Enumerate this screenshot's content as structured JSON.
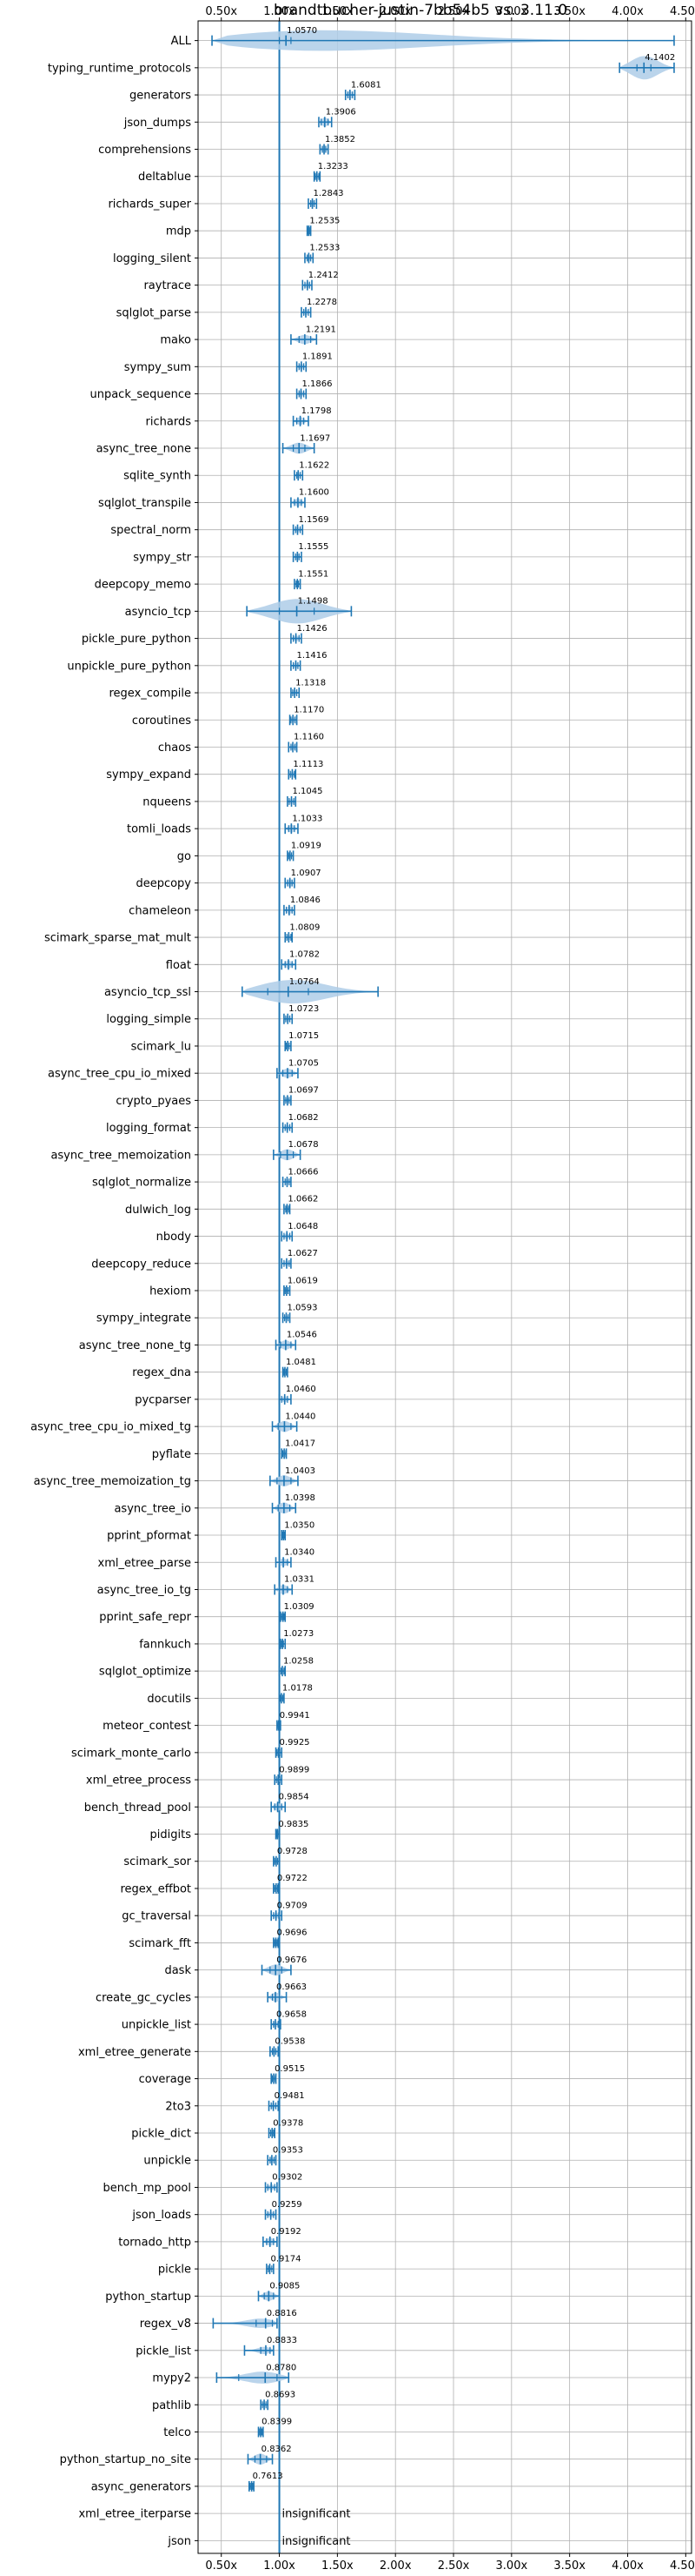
{
  "chart_data": {
    "type": "violin",
    "title": "brandtbucher-justin-7bb54b5 vs. 3.11.0",
    "xlim": [
      0.3,
      4.55
    ],
    "xticks": [
      "0.50x",
      "1.00x",
      "1.50x",
      "2.00x",
      "2.50x",
      "3.00x",
      "3.50x",
      "4.00x",
      "4.50x"
    ],
    "xtick_values": [
      0.5,
      1.0,
      1.5,
      2.0,
      2.5,
      3.0,
      3.5,
      4.0,
      4.5
    ],
    "reference_line": 1.0,
    "grid": true,
    "colors": {
      "accent": "#1f77b4",
      "violin": "#aecde8",
      "grid": "#b0b0b0"
    },
    "rows": [
      {
        "name": "ALL",
        "value": 1.057,
        "label": "1.0570",
        "min": 0.42,
        "max": 4.4,
        "width": 0.22,
        "q1": 1.0,
        "q3": 1.1
      },
      {
        "name": "typing_runtime_protocols",
        "value": 4.1402,
        "label": "4.1402",
        "min": 3.93,
        "max": 4.4,
        "width": 0.15,
        "q1": 4.08,
        "q3": 4.2
      },
      {
        "name": "generators",
        "value": 1.6081,
        "label": "1.6081",
        "min": 1.57,
        "max": 1.65,
        "width": 0.05,
        "q1": 1.59,
        "q3": 1.63
      },
      {
        "name": "json_dumps",
        "value": 1.3906,
        "label": "1.3906",
        "min": 1.34,
        "max": 1.45,
        "width": 0.06,
        "q1": 1.36,
        "q3": 1.42
      },
      {
        "name": "comprehensions",
        "value": 1.3852,
        "label": "1.3852",
        "min": 1.35,
        "max": 1.42,
        "width": 0.05,
        "q1": 1.37,
        "q3": 1.4
      },
      {
        "name": "deltablue",
        "value": 1.3233,
        "label": "1.3233",
        "min": 1.3,
        "max": 1.35,
        "width": 0.04,
        "q1": 1.31,
        "q3": 1.34
      },
      {
        "name": "richards_super",
        "value": 1.2843,
        "label": "1.2843",
        "min": 1.25,
        "max": 1.32,
        "width": 0.04,
        "q1": 1.27,
        "q3": 1.3
      },
      {
        "name": "mdp",
        "value": 1.2535,
        "label": "1.2535",
        "min": 1.24,
        "max": 1.27,
        "width": 0.03,
        "q1": 1.245,
        "q3": 1.26
      },
      {
        "name": "logging_silent",
        "value": 1.2533,
        "label": "1.2533",
        "min": 1.22,
        "max": 1.29,
        "width": 0.04,
        "q1": 1.24,
        "q3": 1.27
      },
      {
        "name": "raytrace",
        "value": 1.2412,
        "label": "1.2412",
        "min": 1.2,
        "max": 1.28,
        "width": 0.04,
        "q1": 1.22,
        "q3": 1.26
      },
      {
        "name": "sqlglot_parse",
        "value": 1.2278,
        "label": "1.2278",
        "min": 1.19,
        "max": 1.27,
        "width": 0.04,
        "q1": 1.21,
        "q3": 1.25
      },
      {
        "name": "mako",
        "value": 1.2191,
        "label": "1.2191",
        "min": 1.1,
        "max": 1.32,
        "width": 0.06,
        "q1": 1.17,
        "q3": 1.27
      },
      {
        "name": "sympy_sum",
        "value": 1.1891,
        "label": "1.1891",
        "min": 1.15,
        "max": 1.23,
        "width": 0.04,
        "q1": 1.17,
        "q3": 1.21
      },
      {
        "name": "unpack_sequence",
        "value": 1.1866,
        "label": "1.1866",
        "min": 1.15,
        "max": 1.23,
        "width": 0.04,
        "q1": 1.17,
        "q3": 1.21
      },
      {
        "name": "richards",
        "value": 1.1798,
        "label": "1.1798",
        "min": 1.12,
        "max": 1.25,
        "width": 0.05,
        "q1": 1.15,
        "q3": 1.21
      },
      {
        "name": "async_tree_none",
        "value": 1.1697,
        "label": "1.1697",
        "min": 1.03,
        "max": 1.3,
        "width": 0.07,
        "q1": 1.12,
        "q3": 1.22
      },
      {
        "name": "sqlite_synth",
        "value": 1.1622,
        "label": "1.1622",
        "min": 1.13,
        "max": 1.2,
        "width": 0.04,
        "q1": 1.15,
        "q3": 1.18
      },
      {
        "name": "sqlglot_transpile",
        "value": 1.16,
        "label": "1.1600",
        "min": 1.1,
        "max": 1.22,
        "width": 0.05,
        "q1": 1.13,
        "q3": 1.19
      },
      {
        "name": "spectral_norm",
        "value": 1.1569,
        "label": "1.1569",
        "min": 1.12,
        "max": 1.2,
        "width": 0.04,
        "q1": 1.14,
        "q3": 1.18
      },
      {
        "name": "sympy_str",
        "value": 1.1555,
        "label": "1.1555",
        "min": 1.12,
        "max": 1.19,
        "width": 0.04,
        "q1": 1.14,
        "q3": 1.17
      },
      {
        "name": "deepcopy_memo",
        "value": 1.1551,
        "label": "1.1551",
        "min": 1.13,
        "max": 1.18,
        "width": 0.04,
        "q1": 1.145,
        "q3": 1.165
      },
      {
        "name": "asyncio_tcp",
        "value": 1.1498,
        "label": "1.1498",
        "min": 0.72,
        "max": 1.62,
        "width": 0.24,
        "q1": 1.0,
        "q3": 1.3
      },
      {
        "name": "pickle_pure_python",
        "value": 1.1426,
        "label": "1.1426",
        "min": 1.1,
        "max": 1.19,
        "width": 0.04,
        "q1": 1.12,
        "q3": 1.17
      },
      {
        "name": "unpickle_pure_python",
        "value": 1.1416,
        "label": "1.1416",
        "min": 1.1,
        "max": 1.18,
        "width": 0.04,
        "q1": 1.12,
        "q3": 1.16
      },
      {
        "name": "regex_compile",
        "value": 1.1318,
        "label": "1.1318",
        "min": 1.1,
        "max": 1.17,
        "width": 0.04,
        "q1": 1.115,
        "q3": 1.15
      },
      {
        "name": "coroutines",
        "value": 1.117,
        "label": "1.1170",
        "min": 1.09,
        "max": 1.15,
        "width": 0.04,
        "q1": 1.1,
        "q3": 1.135
      },
      {
        "name": "chaos",
        "value": 1.116,
        "label": "1.1160",
        "min": 1.08,
        "max": 1.15,
        "width": 0.04,
        "q1": 1.1,
        "q3": 1.135
      },
      {
        "name": "sympy_expand",
        "value": 1.1113,
        "label": "1.1113",
        "min": 1.08,
        "max": 1.14,
        "width": 0.04,
        "q1": 1.095,
        "q3": 1.13
      },
      {
        "name": "nqueens",
        "value": 1.1045,
        "label": "1.1045",
        "min": 1.07,
        "max": 1.14,
        "width": 0.04,
        "q1": 1.085,
        "q3": 1.125
      },
      {
        "name": "tomli_loads",
        "value": 1.1033,
        "label": "1.1033",
        "min": 1.05,
        "max": 1.16,
        "width": 0.05,
        "q1": 1.08,
        "q3": 1.13
      },
      {
        "name": "go",
        "value": 1.0919,
        "label": "1.0919",
        "min": 1.07,
        "max": 1.12,
        "width": 0.03,
        "q1": 1.08,
        "q3": 1.105
      },
      {
        "name": "deepcopy",
        "value": 1.0907,
        "label": "1.0907",
        "min": 1.05,
        "max": 1.13,
        "width": 0.05,
        "q1": 1.07,
        "q3": 1.11
      },
      {
        "name": "chameleon",
        "value": 1.0846,
        "label": "1.0846",
        "min": 1.04,
        "max": 1.13,
        "width": 0.05,
        "q1": 1.06,
        "q3": 1.11
      },
      {
        "name": "scimark_sparse_mat_mult",
        "value": 1.0809,
        "label": "1.0809",
        "min": 1.05,
        "max": 1.11,
        "width": 0.04,
        "q1": 1.065,
        "q3": 1.1
      },
      {
        "name": "float",
        "value": 1.0782,
        "label": "1.0782",
        "min": 1.02,
        "max": 1.14,
        "width": 0.05,
        "q1": 1.05,
        "q3": 1.11
      },
      {
        "name": "asyncio_tcp_ssl",
        "value": 1.0764,
        "label": "1.0764",
        "min": 0.68,
        "max": 1.85,
        "width": 0.25,
        "q1": 0.9,
        "q3": 1.25
      },
      {
        "name": "logging_simple",
        "value": 1.0723,
        "label": "1.0723",
        "min": 1.04,
        "max": 1.11,
        "width": 0.04,
        "q1": 1.055,
        "q3": 1.09
      },
      {
        "name": "scimark_lu",
        "value": 1.0715,
        "label": "1.0715",
        "min": 1.05,
        "max": 1.1,
        "width": 0.03,
        "q1": 1.06,
        "q3": 1.085
      },
      {
        "name": "async_tree_cpu_io_mixed",
        "value": 1.0705,
        "label": "1.0705",
        "min": 0.98,
        "max": 1.16,
        "width": 0.06,
        "q1": 1.03,
        "q3": 1.11
      },
      {
        "name": "crypto_pyaes",
        "value": 1.0697,
        "label": "1.0697",
        "min": 1.04,
        "max": 1.1,
        "width": 0.03,
        "q1": 1.055,
        "q3": 1.085
      },
      {
        "name": "logging_format",
        "value": 1.0682,
        "label": "1.0682",
        "min": 1.03,
        "max": 1.11,
        "width": 0.04,
        "q1": 1.05,
        "q3": 1.09
      },
      {
        "name": "async_tree_memoization",
        "value": 1.0678,
        "label": "1.0678",
        "min": 0.95,
        "max": 1.18,
        "width": 0.07,
        "q1": 1.01,
        "q3": 1.12
      },
      {
        "name": "sqlglot_normalize",
        "value": 1.0666,
        "label": "1.0666",
        "min": 1.03,
        "max": 1.1,
        "width": 0.04,
        "q1": 1.05,
        "q3": 1.085
      },
      {
        "name": "dulwich_log",
        "value": 1.0662,
        "label": "1.0662",
        "min": 1.04,
        "max": 1.09,
        "width": 0.03,
        "q1": 1.055,
        "q3": 1.08
      },
      {
        "name": "nbody",
        "value": 1.0648,
        "label": "1.0648",
        "min": 1.02,
        "max": 1.11,
        "width": 0.04,
        "q1": 1.04,
        "q3": 1.09
      },
      {
        "name": "deepcopy_reduce",
        "value": 1.0627,
        "label": "1.0627",
        "min": 1.02,
        "max": 1.1,
        "width": 0.04,
        "q1": 1.04,
        "q3": 1.085
      },
      {
        "name": "hexiom",
        "value": 1.0619,
        "label": "1.0619",
        "min": 1.04,
        "max": 1.09,
        "width": 0.03,
        "q1": 1.05,
        "q3": 1.075
      },
      {
        "name": "sympy_integrate",
        "value": 1.0593,
        "label": "1.0593",
        "min": 1.03,
        "max": 1.09,
        "width": 0.03,
        "q1": 1.045,
        "q3": 1.075
      },
      {
        "name": "async_tree_none_tg",
        "value": 1.0546,
        "label": "1.0546",
        "min": 0.97,
        "max": 1.14,
        "width": 0.06,
        "q1": 1.01,
        "q3": 1.1
      },
      {
        "name": "regex_dna",
        "value": 1.0481,
        "label": "1.0481",
        "min": 1.03,
        "max": 1.07,
        "width": 0.03,
        "q1": 1.04,
        "q3": 1.06
      },
      {
        "name": "pycparser",
        "value": 1.046,
        "label": "1.0460",
        "min": 1.0,
        "max": 1.1,
        "width": 0.04,
        "q1": 1.02,
        "q3": 1.07
      },
      {
        "name": "async_tree_cpu_io_mixed_tg",
        "value": 1.044,
        "label": "1.0440",
        "min": 0.94,
        "max": 1.15,
        "width": 0.07,
        "q1": 0.99,
        "q3": 1.1
      },
      {
        "name": "pyflate",
        "value": 1.0417,
        "label": "1.0417",
        "min": 1.02,
        "max": 1.06,
        "width": 0.03,
        "q1": 1.03,
        "q3": 1.055
      },
      {
        "name": "async_tree_memoization_tg",
        "value": 1.0403,
        "label": "1.0403",
        "min": 0.92,
        "max": 1.16,
        "width": 0.07,
        "q1": 0.98,
        "q3": 1.1
      },
      {
        "name": "async_tree_io",
        "value": 1.0398,
        "label": "1.0398",
        "min": 0.94,
        "max": 1.14,
        "width": 0.07,
        "q1": 0.99,
        "q3": 1.09
      },
      {
        "name": "pprint_pformat",
        "value": 1.035,
        "label": "1.0350",
        "min": 1.02,
        "max": 1.05,
        "width": 0.02,
        "q1": 1.03,
        "q3": 1.045
      },
      {
        "name": "xml_etree_parse",
        "value": 1.034,
        "label": "1.0340",
        "min": 0.97,
        "max": 1.1,
        "width": 0.05,
        "q1": 1.0,
        "q3": 1.07
      },
      {
        "name": "async_tree_io_tg",
        "value": 1.0331,
        "label": "1.0331",
        "min": 0.96,
        "max": 1.11,
        "width": 0.06,
        "q1": 1.0,
        "q3": 1.07
      },
      {
        "name": "pprint_safe_repr",
        "value": 1.0309,
        "label": "1.0309",
        "min": 1.01,
        "max": 1.05,
        "width": 0.02,
        "q1": 1.02,
        "q3": 1.04
      },
      {
        "name": "fannkuch",
        "value": 1.0273,
        "label": "1.0273",
        "min": 1.01,
        "max": 1.05,
        "width": 0.02,
        "q1": 1.02,
        "q3": 1.035
      },
      {
        "name": "sqlglot_optimize",
        "value": 1.0258,
        "label": "1.0258",
        "min": 1.0,
        "max": 1.05,
        "width": 0.03,
        "q1": 1.015,
        "q3": 1.04
      },
      {
        "name": "docutils",
        "value": 1.0178,
        "label": "1.0178",
        "min": 1.0,
        "max": 1.04,
        "width": 0.03,
        "q1": 1.01,
        "q3": 1.03
      },
      {
        "name": "meteor_contest",
        "value": 0.9941,
        "label": "0.9941",
        "min": 0.98,
        "max": 1.01,
        "width": 0.02,
        "q1": 0.99,
        "q3": 1.0
      },
      {
        "name": "scimark_monte_carlo",
        "value": 0.9925,
        "label": "0.9925",
        "min": 0.97,
        "max": 1.02,
        "width": 0.03,
        "q1": 0.98,
        "q3": 1.005
      },
      {
        "name": "xml_etree_process",
        "value": 0.9899,
        "label": "0.9899",
        "min": 0.96,
        "max": 1.02,
        "width": 0.03,
        "q1": 0.975,
        "q3": 1.005
      },
      {
        "name": "bench_thread_pool",
        "value": 0.9854,
        "label": "0.9854",
        "min": 0.93,
        "max": 1.05,
        "width": 0.05,
        "q1": 0.96,
        "q3": 1.02
      },
      {
        "name": "pidigits",
        "value": 0.9835,
        "label": "0.9835",
        "min": 0.97,
        "max": 1.0,
        "width": 0.02,
        "q1": 0.975,
        "q3": 0.995
      },
      {
        "name": "scimark_sor",
        "value": 0.9728,
        "label": "0.9728",
        "min": 0.95,
        "max": 1.0,
        "width": 0.03,
        "q1": 0.96,
        "q3": 0.985
      },
      {
        "name": "regex_effbot",
        "value": 0.9722,
        "label": "0.9722",
        "min": 0.95,
        "max": 0.99,
        "width": 0.03,
        "q1": 0.96,
        "q3": 0.985
      },
      {
        "name": "gc_traversal",
        "value": 0.9709,
        "label": "0.9709",
        "min": 0.93,
        "max": 1.02,
        "width": 0.04,
        "q1": 0.95,
        "q3": 0.995
      },
      {
        "name": "scimark_fft",
        "value": 0.9696,
        "label": "0.9696",
        "min": 0.95,
        "max": 0.99,
        "width": 0.02,
        "q1": 0.96,
        "q3": 0.98
      },
      {
        "name": "dask",
        "value": 0.9676,
        "label": "0.9676",
        "min": 0.85,
        "max": 1.1,
        "width": 0.07,
        "q1": 0.92,
        "q3": 1.02
      },
      {
        "name": "create_gc_cycles",
        "value": 0.9663,
        "label": "0.9663",
        "min": 0.9,
        "max": 1.06,
        "width": 0.06,
        "q1": 0.94,
        "q3": 1.0
      },
      {
        "name": "unpickle_list",
        "value": 0.9658,
        "label": "0.9658",
        "min": 0.93,
        "max": 1.01,
        "width": 0.04,
        "q1": 0.95,
        "q3": 0.99
      },
      {
        "name": "xml_etree_generate",
        "value": 0.9538,
        "label": "0.9538",
        "min": 0.92,
        "max": 0.99,
        "width": 0.04,
        "q1": 0.94,
        "q3": 0.97
      },
      {
        "name": "coverage",
        "value": 0.9515,
        "label": "0.9515",
        "min": 0.93,
        "max": 0.97,
        "width": 0.03,
        "q1": 0.94,
        "q3": 0.965
      },
      {
        "name": "2to3",
        "value": 0.9481,
        "label": "0.9481",
        "min": 0.91,
        "max": 0.99,
        "width": 0.04,
        "q1": 0.93,
        "q3": 0.97
      },
      {
        "name": "pickle_dict",
        "value": 0.9378,
        "label": "0.9378",
        "min": 0.91,
        "max": 0.96,
        "width": 0.03,
        "q1": 0.925,
        "q3": 0.95
      },
      {
        "name": "unpickle",
        "value": 0.9353,
        "label": "0.9353",
        "min": 0.9,
        "max": 0.97,
        "width": 0.04,
        "q1": 0.92,
        "q3": 0.955
      },
      {
        "name": "bench_mp_pool",
        "value": 0.9302,
        "label": "0.9302",
        "min": 0.88,
        "max": 0.98,
        "width": 0.04,
        "q1": 0.9,
        "q3": 0.96
      },
      {
        "name": "json_loads",
        "value": 0.9259,
        "label": "0.9259",
        "min": 0.88,
        "max": 0.97,
        "width": 0.04,
        "q1": 0.9,
        "q3": 0.95
      },
      {
        "name": "tornado_http",
        "value": 0.9192,
        "label": "0.9192",
        "min": 0.86,
        "max": 0.98,
        "width": 0.05,
        "q1": 0.89,
        "q3": 0.95
      },
      {
        "name": "pickle",
        "value": 0.9174,
        "label": "0.9174",
        "min": 0.89,
        "max": 0.95,
        "width": 0.03,
        "q1": 0.905,
        "q3": 0.935
      },
      {
        "name": "python_startup",
        "value": 0.9085,
        "label": "0.9085",
        "min": 0.82,
        "max": 1.0,
        "width": 0.06,
        "q1": 0.87,
        "q3": 0.95
      },
      {
        "name": "regex_v8",
        "value": 0.8816,
        "label": "0.8816",
        "min": 0.43,
        "max": 0.98,
        "width": 0.07,
        "q1": 0.8,
        "q3": 0.94
      },
      {
        "name": "pickle_list",
        "value": 0.8833,
        "label": "0.8833",
        "min": 0.7,
        "max": 0.95,
        "width": 0.05,
        "q1": 0.84,
        "q3": 0.92
      },
      {
        "name": "mypy2",
        "value": 0.878,
        "label": "0.8780",
        "min": 0.46,
        "max": 1.08,
        "width": 0.08,
        "q1": 0.65,
        "q3": 0.98
      },
      {
        "name": "pathlib",
        "value": 0.8693,
        "label": "0.8693",
        "min": 0.84,
        "max": 0.9,
        "width": 0.03,
        "q1": 0.855,
        "q3": 0.885
      },
      {
        "name": "telco",
        "value": 0.8399,
        "label": "0.8399",
        "min": 0.82,
        "max": 0.86,
        "width": 0.03,
        "q1": 0.83,
        "q3": 0.85
      },
      {
        "name": "python_startup_no_site",
        "value": 0.8362,
        "label": "0.8362",
        "min": 0.73,
        "max": 0.94,
        "width": 0.07,
        "q1": 0.79,
        "q3": 0.89
      },
      {
        "name": "async_generators",
        "value": 0.7613,
        "label": "0.7613",
        "min": 0.74,
        "max": 0.78,
        "width": 0.03,
        "q1": 0.75,
        "q3": 0.77
      },
      {
        "name": "xml_etree_iterparse",
        "value": null,
        "label": "insignificant"
      },
      {
        "name": "json",
        "value": null,
        "label": "insignificant"
      }
    ]
  }
}
